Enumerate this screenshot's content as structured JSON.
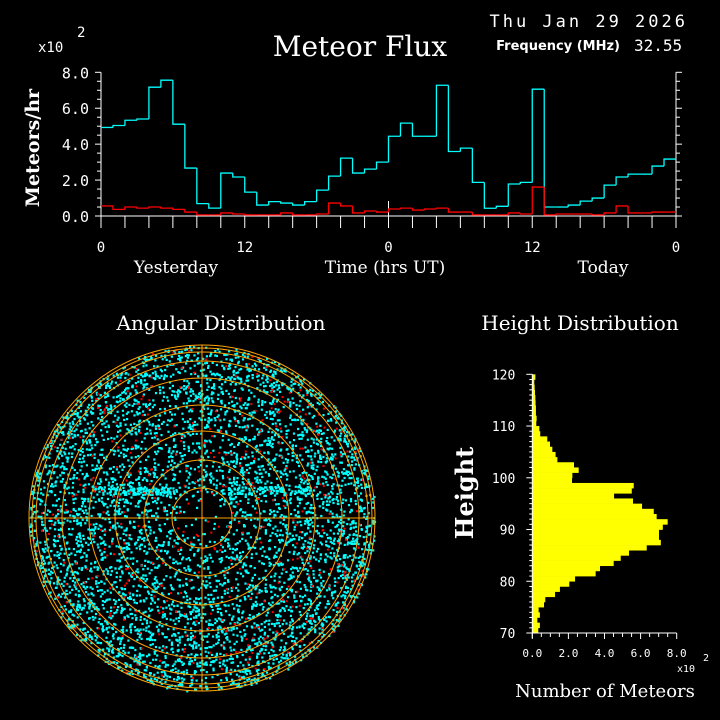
{
  "header": {
    "date": "Thu Jan 29 2026",
    "title": "Meteor Flux",
    "frequency_label": "Frequency (MHz)",
    "frequency_value": "32.55"
  },
  "colors": {
    "all": "#00ffff",
    "highlight": "#ff0000",
    "rings": "#ffa500",
    "histogram": "#ffff00",
    "axes": "#ffffff"
  },
  "chart_data": [
    {
      "type": "line",
      "step": true,
      "title": "Meteor Flux",
      "ylabel": "Meteors/hr",
      "y_multiplier": "x10",
      "y_multiplier_exp": "2",
      "xlabel": "Time (hrs UT)",
      "x_group_labels": [
        "Yesterday",
        "Today"
      ],
      "x_tick_labels": [
        "0",
        "12",
        "0",
        "12",
        "0"
      ],
      "y_tick_labels": [
        "0.0",
        "2.0",
        "4.0",
        "6.0",
        "8.0"
      ],
      "xlim": [
        0,
        48
      ],
      "ylim": [
        0,
        8
      ],
      "series": [
        {
          "color": "#00ffff",
          "values": [
            4.93,
            5.04,
            5.33,
            5.4,
            7.17,
            7.56,
            5.11,
            2.67,
            0.69,
            0.44,
            2.39,
            2.17,
            1.33,
            0.61,
            0.8,
            0.72,
            0.61,
            0.8,
            1.44,
            2.22,
            3.22,
            2.39,
            2.61,
            3.0,
            4.44,
            5.17,
            4.44,
            4.44,
            7.28,
            3.59,
            3.78,
            1.87,
            0.43,
            0.54,
            1.78,
            1.87,
            7.06,
            0.5,
            0.5,
            0.61,
            0.83,
            1.0,
            1.72,
            2.17,
            2.33,
            2.33,
            2.78,
            3.17
          ]
        },
        {
          "color": "#ff0000",
          "values": [
            0.56,
            0.37,
            0.5,
            0.44,
            0.5,
            0.44,
            0.37,
            0.22,
            0.06,
            0.06,
            0.17,
            0.11,
            0.06,
            0.06,
            0.06,
            0.17,
            0.06,
            0.06,
            0.11,
            0.72,
            0.56,
            0.17,
            0.28,
            0.22,
            0.39,
            0.44,
            0.33,
            0.39,
            0.44,
            0.22,
            0.22,
            0.06,
            0.06,
            0.06,
            0.17,
            0.11,
            1.61,
            0.06,
            0.11,
            0.11,
            0.11,
            0.06,
            0.17,
            0.56,
            0.17,
            0.17,
            0.22,
            0.22
          ]
        }
      ]
    },
    {
      "type": "scatter",
      "title": "Angular Distribution",
      "projection": "polar",
      "series_colors": [
        "#00ffff",
        "#ff0000"
      ]
    },
    {
      "type": "bar",
      "orientation": "horizontal",
      "title": "Height Distribution",
      "ylabel": "Height",
      "xlabel": "Number of Meteors",
      "x_multiplier": "x10",
      "x_multiplier_exp": "2",
      "ylim": [
        70,
        120
      ],
      "xlim": [
        0,
        8
      ],
      "y_tick_labels": [
        "70",
        "80",
        "90",
        "100",
        "110",
        "120"
      ],
      "x_tick_labels": [
        "0.0",
        "2.0",
        "4.0",
        "6.0",
        "8.0"
      ],
      "bin_start": 70,
      "bin_width": 1,
      "values": [
        0.33,
        0.42,
        0.28,
        0.42,
        0.35,
        0.65,
        0.72,
        1.26,
        1.53,
        2.05,
        2.37,
        3.51,
        3.75,
        4.51,
        4.9,
        5.36,
        6.34,
        7.12,
        7.02,
        7.02,
        7.23,
        7.5,
        6.89,
        6.73,
        6.08,
        5.58,
        4.53,
        5.51,
        5.62,
        2.2,
        2.22,
        2.57,
        2.31,
        1.39,
        1.29,
        1.11,
        0.98,
        0.83,
        0.44,
        0.39,
        0.22,
        0.24,
        0.2,
        0.2,
        0.18,
        0.17,
        0.15,
        0.13,
        0.11,
        0.17
      ]
    }
  ]
}
